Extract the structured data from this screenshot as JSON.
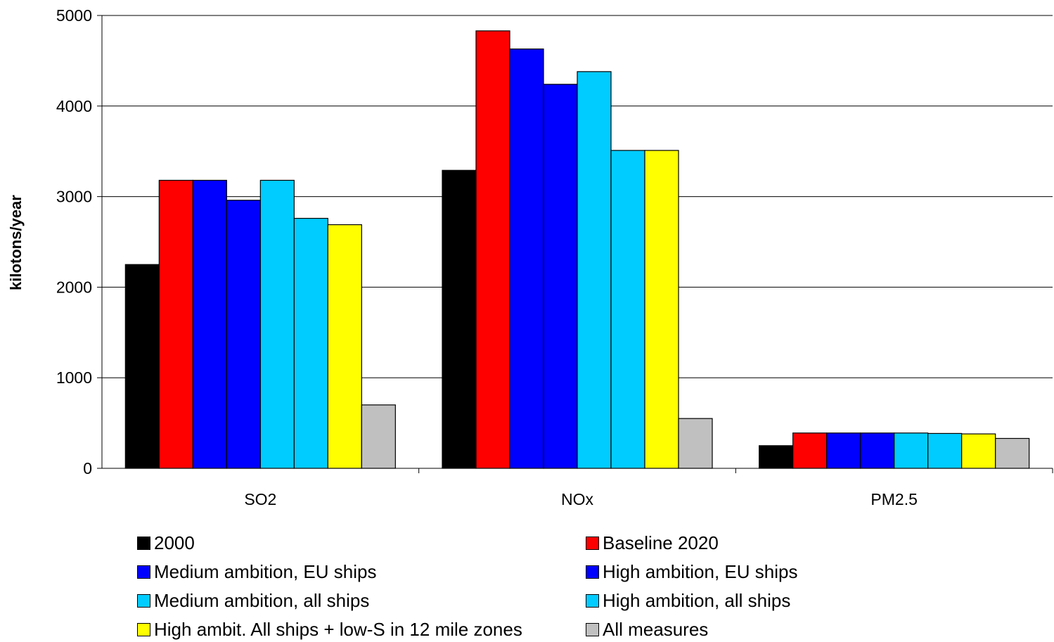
{
  "chart_data": {
    "type": "bar",
    "title": "",
    "xlabel": "",
    "ylabel": "kilotons/year",
    "ylim": [
      0,
      5000
    ],
    "yticks": [
      0,
      1000,
      2000,
      3000,
      4000,
      5000
    ],
    "grid": true,
    "legend_position": "bottom",
    "categories": [
      "SO2",
      "NOx",
      "PM2.5"
    ],
    "series": [
      {
        "name": "2000",
        "color": "#000000",
        "values": [
          2250,
          3290,
          250
        ]
      },
      {
        "name": "Baseline 2020",
        "color": "#ff0000",
        "values": [
          3180,
          4830,
          390
        ]
      },
      {
        "name": "Medium ambition, EU ships",
        "color": "#0000ff",
        "values": [
          3180,
          4630,
          390
        ]
      },
      {
        "name": "High ambition, EU ships",
        "color": "#0000ff",
        "values": [
          2960,
          4240,
          390
        ]
      },
      {
        "name": "Medium ambition, all ships",
        "color": "#00ccff",
        "values": [
          3180,
          4380,
          390
        ]
      },
      {
        "name": "High ambition, all ships",
        "color": "#00ccff",
        "values": [
          2760,
          3510,
          385
        ]
      },
      {
        "name": "High ambit. All ships + low-S in 12 mile zones",
        "color": "#ffff00",
        "values": [
          2690,
          3510,
          380
        ]
      },
      {
        "name": "All measures",
        "color": "#c0c0c0",
        "values": [
          700,
          550,
          330
        ]
      }
    ]
  }
}
